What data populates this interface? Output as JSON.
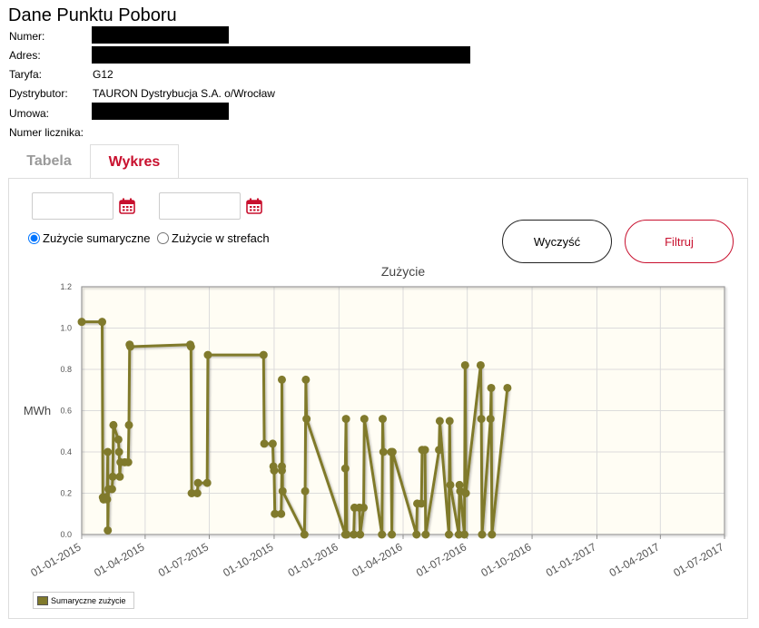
{
  "header": {
    "title": "Dane Punktu Poboru",
    "rows": [
      {
        "label": "Numer:",
        "value": ""
      },
      {
        "label": "Adres:",
        "value": ""
      },
      {
        "label": "Taryfa:",
        "value": "G12"
      },
      {
        "label": "Dystrybutor:",
        "value": "TAURON Dystrybucja S.A. o/Wrocław"
      },
      {
        "label": "Umowa:",
        "value": ""
      },
      {
        "label": "Numer licznika:",
        "value": ""
      }
    ]
  },
  "tabs": [
    {
      "label": "Tabela",
      "active": false
    },
    {
      "label": "Wykres",
      "active": true
    }
  ],
  "filters": {
    "date_from": {
      "value": "",
      "placeholder": ""
    },
    "date_to": {
      "value": "",
      "placeholder": ""
    },
    "radio_total": {
      "label": "Zużycie sumaryczne",
      "checked": true
    },
    "radio_zones": {
      "label": "Zużycie w strefach",
      "checked": false
    },
    "clear_label": "Wyczyść",
    "filter_label": "Filtruj"
  },
  "colors": {
    "accent": "#c8102e",
    "series": "#807a2c",
    "plot_bg": "#fffdf4"
  },
  "icons": {
    "calendar": "calendar-icon"
  },
  "chart_data": {
    "type": "line",
    "title": "Zużycie",
    "ylabel": "MWh",
    "xlabel": "",
    "ylim": [
      0,
      1.2
    ],
    "yticks": [
      "0.0",
      "0.2",
      "0.4",
      "0.6",
      "0.8",
      "1.0",
      "1.2"
    ],
    "xlim": [
      "2015-01-01",
      "2017-07-01"
    ],
    "xticks": [
      "01-01-2015",
      "01-04-2015",
      "01-07-2015",
      "01-10-2015",
      "01-01-2016",
      "01-04-2016",
      "01-07-2016",
      "01-10-2016",
      "01-01-2017",
      "01-04-2017",
      "01-07-2017"
    ],
    "grid": true,
    "legend_position": "bottom-left",
    "series": [
      {
        "name": "Sumaryczne zużycie",
        "points": [
          [
            "2015-01-01",
            1.03
          ],
          [
            "2015-01-30",
            1.03
          ],
          [
            "2015-01-31",
            0.18
          ],
          [
            "2015-02-01",
            0.17
          ],
          [
            "2015-02-04",
            0.18
          ],
          [
            "2015-02-06",
            0.17
          ],
          [
            "2015-02-07",
            0.4
          ],
          [
            "2015-02-07",
            0.02
          ],
          [
            "2015-02-08",
            0.22
          ],
          [
            "2015-02-13",
            0.22
          ],
          [
            "2015-02-14",
            0.28
          ],
          [
            "2015-02-15",
            0.53
          ],
          [
            "2015-02-22",
            0.46
          ],
          [
            "2015-02-23",
            0.4
          ],
          [
            "2015-02-24",
            0.28
          ],
          [
            "2015-02-25",
            0.35
          ],
          [
            "2015-03-03",
            0.35
          ],
          [
            "2015-03-08",
            0.35
          ],
          [
            "2015-03-09",
            0.53
          ],
          [
            "2015-03-10",
            0.92
          ],
          [
            "2015-03-11",
            0.91
          ],
          [
            "2015-06-04",
            0.92
          ],
          [
            "2015-06-05",
            0.91
          ],
          [
            "2015-06-06",
            0.2
          ],
          [
            "2015-06-14",
            0.2
          ],
          [
            "2015-06-15",
            0.25
          ],
          [
            "2015-06-28",
            0.25
          ],
          [
            "2015-06-29",
            0.87
          ],
          [
            "2015-09-16",
            0.87
          ],
          [
            "2015-09-17",
            0.44
          ],
          [
            "2015-09-29",
            0.44
          ],
          [
            "2015-09-30",
            0.33
          ],
          [
            "2015-10-01",
            0.31
          ],
          [
            "2015-10-02",
            0.1
          ],
          [
            "2015-10-11",
            0.1
          ],
          [
            "2015-10-12",
            0.33
          ],
          [
            "2015-10-12",
            0.31
          ],
          [
            "2015-10-12",
            0.75
          ],
          [
            "2015-10-13",
            0.21
          ],
          [
            "2015-11-13",
            0.0
          ],
          [
            "2015-11-14",
            0.21
          ],
          [
            "2015-11-15",
            0.75
          ],
          [
            "2015-11-16",
            0.56
          ],
          [
            "2016-01-10",
            0.0
          ],
          [
            "2016-01-10",
            0.32
          ],
          [
            "2016-01-11",
            0.56
          ],
          [
            "2016-01-12",
            0.0
          ],
          [
            "2016-01-22",
            0.0
          ],
          [
            "2016-01-23",
            0.13
          ],
          [
            "2016-01-30",
            0.13
          ],
          [
            "2016-01-31",
            0.0
          ],
          [
            "2016-02-05",
            0.13
          ],
          [
            "2016-02-06",
            0.56
          ],
          [
            "2016-03-02",
            0.0
          ],
          [
            "2016-03-03",
            0.56
          ],
          [
            "2016-03-04",
            0.4
          ],
          [
            "2016-03-15",
            0.4
          ],
          [
            "2016-03-16",
            0.0
          ],
          [
            "2016-03-17",
            0.4
          ],
          [
            "2016-04-20",
            0.0
          ],
          [
            "2016-04-21",
            0.15
          ],
          [
            "2016-04-27",
            0.15
          ],
          [
            "2016-04-28",
            0.41
          ],
          [
            "2016-05-02",
            0.41
          ],
          [
            "2016-05-03",
            0.0
          ],
          [
            "2016-05-22",
            0.41
          ],
          [
            "2016-05-23",
            0.55
          ],
          [
            "2016-06-05",
            0.0
          ],
          [
            "2016-06-06",
            0.55
          ],
          [
            "2016-06-07",
            0.24
          ],
          [
            "2016-06-19",
            0.0
          ],
          [
            "2016-06-20",
            0.24
          ],
          [
            "2016-06-21",
            0.21
          ],
          [
            "2016-06-27",
            0.0
          ],
          [
            "2016-06-28",
            0.82
          ],
          [
            "2016-06-29",
            0.2
          ],
          [
            "2016-07-20",
            0.82
          ],
          [
            "2016-07-21",
            0.56
          ],
          [
            "2016-07-22",
            0.0
          ],
          [
            "2016-08-03",
            0.56
          ],
          [
            "2016-08-04",
            0.71
          ],
          [
            "2016-08-05",
            0.0
          ],
          [
            "2016-08-27",
            0.71
          ]
        ]
      }
    ]
  }
}
